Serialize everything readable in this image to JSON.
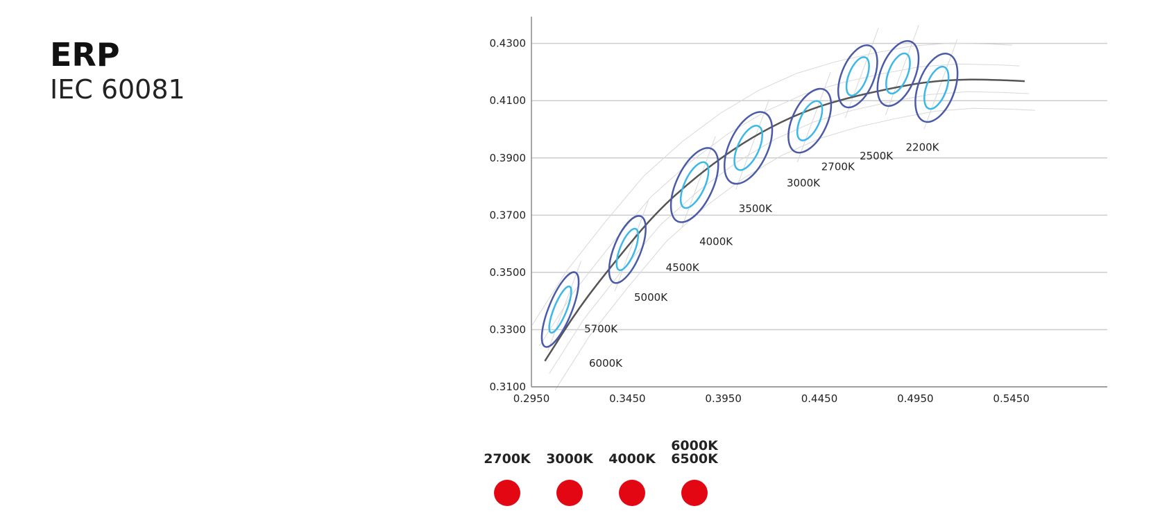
{
  "heading": {
    "title": "ERP",
    "subtitle": "IEC 60081"
  },
  "chart_data": {
    "type": "scatter",
    "title": "",
    "xlabel": "",
    "ylabel": "",
    "xlim": [
      0.295,
      0.595
    ],
    "ylim": [
      0.31,
      0.435
    ],
    "x_ticks": [
      "0.2950",
      "0.3450",
      "0.3950",
      "0.4450",
      "0.4950",
      "0.5450"
    ],
    "y_ticks": [
      "0.3100",
      "0.3300",
      "0.3500",
      "0.3700",
      "0.3900",
      "0.4100",
      "0.4300"
    ],
    "grid": "horizontal",
    "colors": {
      "outer_ellipse": "#4b5aa8",
      "inner_ellipse": "#3bb7e8",
      "curve": "#555555",
      "grid": "#cccccc",
      "axis": "#888888",
      "boundary": "#d8d8d8"
    },
    "planckian_locus": [
      [
        0.302,
        0.319
      ],
      [
        0.32,
        0.338
      ],
      [
        0.34,
        0.355
      ],
      [
        0.36,
        0.371
      ],
      [
        0.38,
        0.383
      ],
      [
        0.4,
        0.393
      ],
      [
        0.42,
        0.401
      ],
      [
        0.44,
        0.407
      ],
      [
        0.46,
        0.411
      ],
      [
        0.48,
        0.414
      ],
      [
        0.5,
        0.4165
      ],
      [
        0.52,
        0.4175
      ],
      [
        0.54,
        0.4172
      ],
      [
        0.552,
        0.4168
      ]
    ],
    "points": [
      {
        "label": "6000K",
        "x": 0.3095,
        "y": 0.336,
        "label_x": 0.325,
        "label_y": 0.317
      },
      {
        "label": "5700K",
        "x": 0.308,
        "y": 0.335,
        "label_x": 0.3225,
        "label_y": 0.329
      },
      {
        "label": "5000K",
        "x": 0.345,
        "y": 0.358,
        "label_x": 0.3485,
        "label_y": 0.34
      },
      {
        "label": "4500K",
        "x": 0.38,
        "y": 0.38,
        "label_x": 0.365,
        "label_y": 0.3505
      },
      {
        "label": "4000K",
        "x": 0.38,
        "y": 0.38,
        "label_x": 0.3825,
        "label_y": 0.3595
      },
      {
        "label": "3500K",
        "x": 0.408,
        "y": 0.3935,
        "label_x": 0.403,
        "label_y": 0.371
      },
      {
        "label": "3000K",
        "x": 0.44,
        "y": 0.403,
        "label_x": 0.428,
        "label_y": 0.38
      },
      {
        "label": "2700K",
        "x": 0.465,
        "y": 0.4185,
        "label_x": 0.446,
        "label_y": 0.3857
      },
      {
        "label": "2500K",
        "x": 0.486,
        "y": 0.4195,
        "label_x": 0.466,
        "label_y": 0.3895
      },
      {
        "label": "2200K",
        "x": 0.506,
        "y": 0.4145,
        "label_x": 0.49,
        "label_y": 0.3925
      }
    ],
    "ellipses": [
      {
        "x": 0.31,
        "y": 0.337,
        "rx": 0.006,
        "ry": 0.014,
        "tilt": 22
      },
      {
        "x": 0.345,
        "y": 0.358,
        "rx": 0.007,
        "ry": 0.0125,
        "tilt": 22
      },
      {
        "x": 0.38,
        "y": 0.3805,
        "rx": 0.0095,
        "ry": 0.014,
        "tilt": 25
      },
      {
        "x": 0.408,
        "y": 0.3935,
        "rx": 0.01,
        "ry": 0.0135,
        "tilt": 25
      },
      {
        "x": 0.44,
        "y": 0.403,
        "rx": 0.009,
        "ry": 0.012,
        "tilt": 25
      },
      {
        "x": 0.465,
        "y": 0.4185,
        "rx": 0.0085,
        "ry": 0.0115,
        "tilt": 22
      },
      {
        "x": 0.486,
        "y": 0.4195,
        "rx": 0.009,
        "ry": 0.012,
        "tilt": 22
      },
      {
        "x": 0.506,
        "y": 0.4145,
        "rx": 0.0095,
        "ry": 0.0125,
        "tilt": 20
      }
    ]
  },
  "legend": {
    "items": [
      {
        "label": "2700K",
        "color": "#e30613"
      },
      {
        "label": "3000K",
        "color": "#e30613"
      },
      {
        "label": "4000K",
        "color": "#e30613"
      },
      {
        "label": "6000K\n6500K",
        "color": "#e30613"
      }
    ]
  }
}
